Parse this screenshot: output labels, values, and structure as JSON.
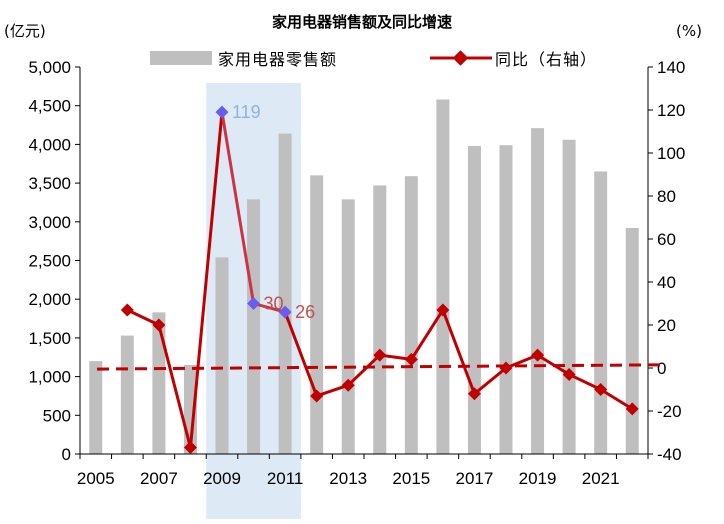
{
  "chart_data": {
    "type": "bar+line",
    "title": "家用电器销售额及同比增速",
    "left_unit": "(亿元)",
    "right_unit": "(%)",
    "x": [
      2005,
      2006,
      2007,
      2008,
      2009,
      2010,
      2011,
      2012,
      2013,
      2014,
      2015,
      2016,
      2017,
      2018,
      2019,
      2020,
      2021,
      2022
    ],
    "x_tick_labels": [
      "2005",
      "2007",
      "2009",
      "2011",
      "2013",
      "2015",
      "2017",
      "2019",
      "2021"
    ],
    "y_left_ticks": [
      "0",
      "500",
      "1,000",
      "1,500",
      "2,000",
      "2,500",
      "3,000",
      "3,500",
      "4,000",
      "4,500",
      "5,000"
    ],
    "y_right_ticks": [
      "-40",
      "-20",
      "0",
      "20",
      "40",
      "60",
      "80",
      "100",
      "120",
      "140"
    ],
    "ylim_left": [
      0,
      5000
    ],
    "ylim_right": [
      -40,
      140
    ],
    "series": [
      {
        "name": "家用电器零售额",
        "type": "bar",
        "axis": "left",
        "color": "#bfbfbf",
        "values": [
          1200,
          1530,
          1830,
          1150,
          2540,
          3290,
          4140,
          3600,
          3290,
          3470,
          3590,
          4580,
          3980,
          3990,
          4210,
          4060,
          3650,
          2920
        ]
      },
      {
        "name": "同比（右轴）",
        "type": "line",
        "axis": "right",
        "color": "#c00000",
        "values": [
          null,
          27,
          20,
          -37,
          119,
          30,
          26,
          -13,
          -8,
          6,
          4,
          27,
          -12,
          0,
          6,
          -3,
          -10,
          -19
        ]
      }
    ],
    "highlight": {
      "x_range": [
        2009,
        2011
      ],
      "fill": "#dde9f5",
      "point_color": "#6b5cf0",
      "line_color": "#cc3344",
      "labels": [
        {
          "x": 2009,
          "text": "119",
          "color": "#8db4e2"
        },
        {
          "x": 2010,
          "text": "30",
          "color": "#c0504d"
        },
        {
          "x": 2011,
          "text": "26",
          "color": "#c0504d"
        }
      ]
    },
    "reference_line": {
      "axis": "right",
      "from": -0.5,
      "to": 1.5,
      "style": "dashed",
      "color": "#c00000"
    },
    "legend_position": "top"
  }
}
